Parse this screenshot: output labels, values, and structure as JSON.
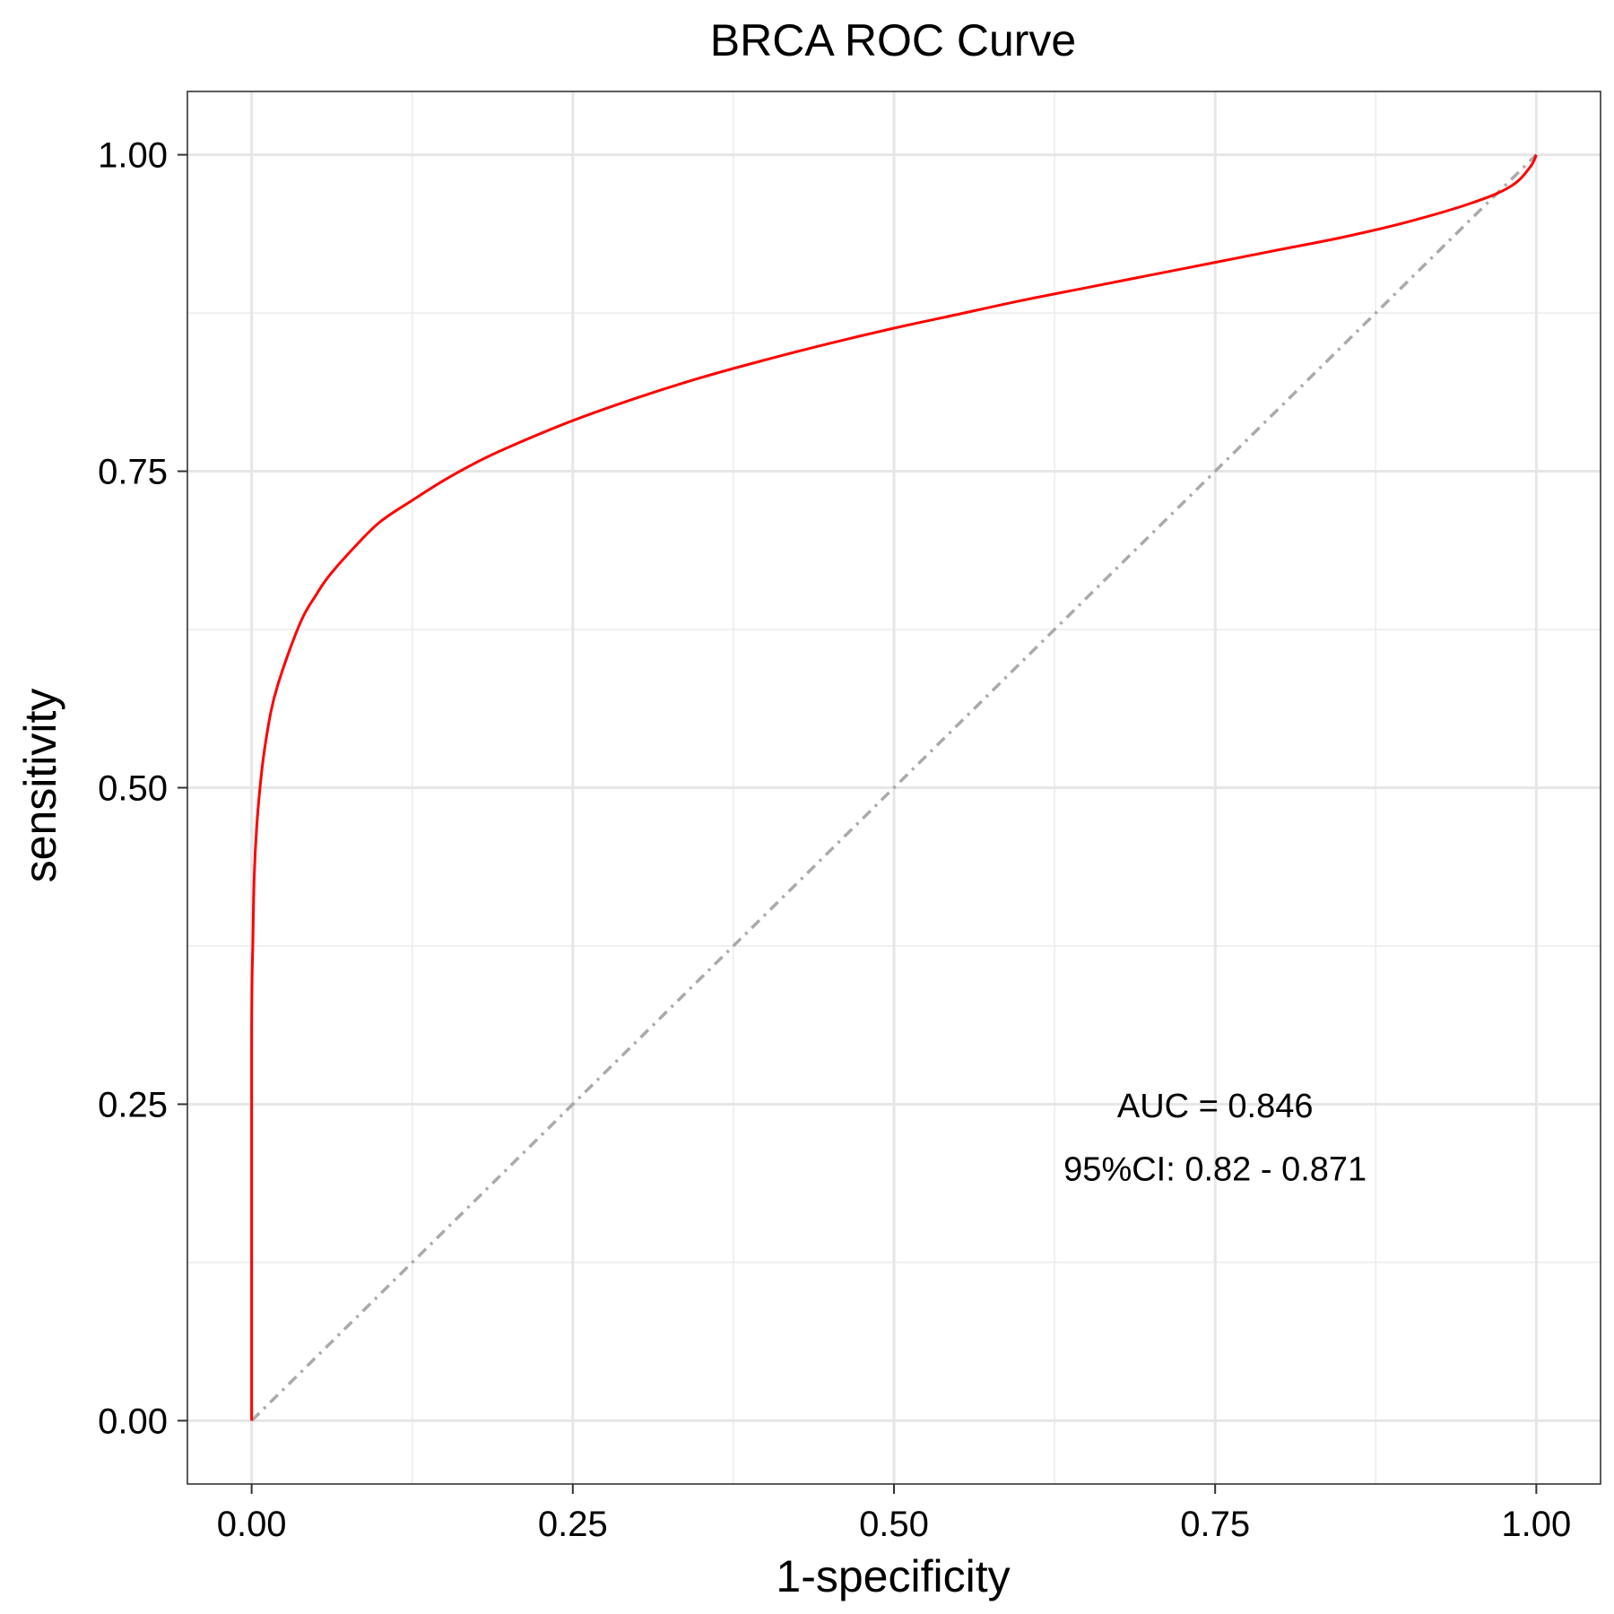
{
  "chart_data": {
    "type": "line",
    "title": "BRCA ROC Curve",
    "xlabel": "1-specificity",
    "ylabel": "sensitivity",
    "xlim": [
      -0.05,
      1.05
    ],
    "ylim": [
      -0.05,
      1.05
    ],
    "x_ticks": [
      "0.00",
      "0.25",
      "0.50",
      "0.75",
      "1.00"
    ],
    "y_ticks": [
      "0.00",
      "0.25",
      "0.50",
      "0.75",
      "1.00"
    ],
    "x_tick_values": [
      0,
      0.25,
      0.5,
      0.75,
      1
    ],
    "y_tick_values": [
      0,
      0.25,
      0.5,
      0.75,
      1
    ],
    "grid": true,
    "series": [
      {
        "color": "#ff0000",
        "style": "solid",
        "x": [
          0,
          0,
          0.001,
          0.002,
          0.004,
          0.007,
          0.01,
          0.015,
          0.02,
          0.03,
          0.04,
          0.05,
          0.06,
          0.08,
          0.1,
          0.125,
          0.15,
          0.175,
          0.2,
          0.25,
          0.3,
          0.35,
          0.4,
          0.45,
          0.5,
          0.55,
          0.6,
          0.65,
          0.7,
          0.75,
          0.8,
          0.85,
          0.9,
          0.95,
          0.98,
          0.995,
          1
        ],
        "y": [
          0,
          0.3,
          0.38,
          0.43,
          0.47,
          0.505,
          0.53,
          0.56,
          0.58,
          0.61,
          0.635,
          0.652,
          0.667,
          0.69,
          0.71,
          0.727,
          0.743,
          0.757,
          0.769,
          0.79,
          0.808,
          0.824,
          0.838,
          0.851,
          0.863,
          0.874,
          0.885,
          0.895,
          0.905,
          0.915,
          0.925,
          0.935,
          0.947,
          0.962,
          0.975,
          0.99,
          1
        ]
      },
      {
        "color": "#aaaaaa",
        "style": "dotdash",
        "x": [
          0,
          1
        ],
        "y": [
          0,
          1
        ]
      }
    ],
    "annotations": [
      {
        "text": "AUC =  0.846",
        "x": 0.75,
        "y": 0.249
      },
      {
        "text": "95%CI:  0.82 - 0.871",
        "x": 0.75,
        "y": 0.199
      }
    ]
  }
}
